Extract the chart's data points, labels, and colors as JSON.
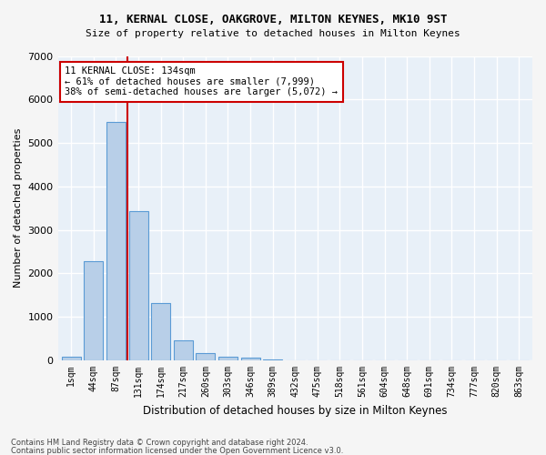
{
  "title1": "11, KERNAL CLOSE, OAKGROVE, MILTON KEYNES, MK10 9ST",
  "title2": "Size of property relative to detached houses in Milton Keynes",
  "xlabel": "Distribution of detached houses by size in Milton Keynes",
  "ylabel": "Number of detached properties",
  "bar_labels": [
    "1sqm",
    "44sqm",
    "87sqm",
    "131sqm",
    "174sqm",
    "217sqm",
    "260sqm",
    "303sqm",
    "346sqm",
    "389sqm",
    "432sqm",
    "475sqm",
    "518sqm",
    "561sqm",
    "604sqm",
    "648sqm",
    "691sqm",
    "734sqm",
    "777sqm",
    "820sqm",
    "863sqm"
  ],
  "bar_values": [
    90,
    2280,
    5480,
    3430,
    1310,
    470,
    160,
    95,
    60,
    30,
    0,
    0,
    0,
    0,
    0,
    0,
    0,
    0,
    0,
    0,
    0
  ],
  "bar_color": "#b8cfe8",
  "bar_edge_color": "#5b9bd5",
  "red_line_index": 3,
  "annotation_line1": "11 KERNAL CLOSE: 134sqm",
  "annotation_line2": "← 61% of detached houses are smaller (7,999)",
  "annotation_line3": "38% of semi-detached houses are larger (5,072) →",
  "annotation_box_color": "#ffffff",
  "annotation_border_color": "#cc0000",
  "ylim": [
    0,
    7000
  ],
  "yticks": [
    0,
    1000,
    2000,
    3000,
    4000,
    5000,
    6000,
    7000
  ],
  "bg_color": "#e8f0f8",
  "fig_bg_color": "#f5f5f5",
  "grid_color": "#ffffff",
  "footer1": "Contains HM Land Registry data © Crown copyright and database right 2024.",
  "footer2": "Contains public sector information licensed under the Open Government Licence v3.0."
}
